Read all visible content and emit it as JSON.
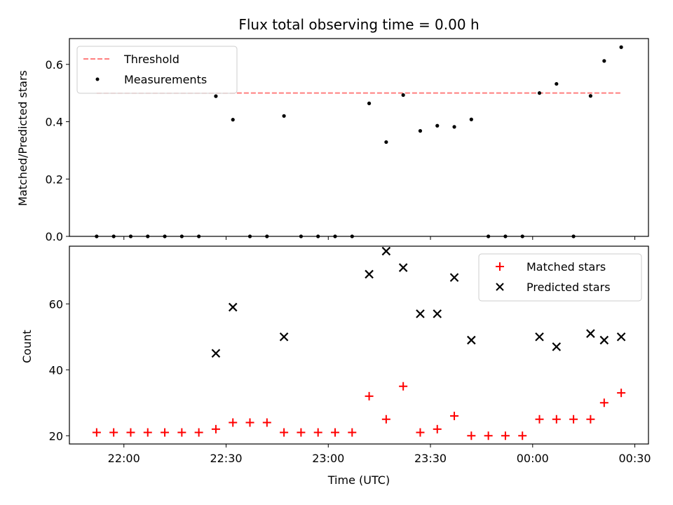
{
  "chart_data": [
    {
      "type": "scatter",
      "title": "Flux total observing time = 0.00 h",
      "ylabel": "Matched/Predicted stars",
      "xlabel": "",
      "xlim": [
        "21:44",
        "00:34"
      ],
      "ylim": [
        0,
        0.69
      ],
      "yticks": [
        0.0,
        0.2,
        0.4,
        0.6
      ],
      "ytick_labels": [
        "0.0",
        "0.2",
        "0.4",
        "0.6"
      ],
      "xticks": [
        "22:00",
        "22:30",
        "23:00",
        "23:30",
        "00:00",
        "00:30"
      ],
      "legend": {
        "position": "top-left",
        "entries": [
          {
            "label": "Threshold",
            "marker": "dashed-line",
            "color": "#ff7f7f"
          },
          {
            "label": "Measurements",
            "marker": "dot",
            "color": "#000000"
          }
        ]
      },
      "threshold": {
        "name": "Threshold",
        "value": 0.5,
        "x_range": [
          "21:52",
          "00:26"
        ],
        "color": "#ff7f7f",
        "style": "dashed"
      },
      "series": [
        {
          "name": "Measurements",
          "color": "#000000",
          "marker": "dot",
          "points": [
            {
              "x": "21:52",
              "y": 0.0
            },
            {
              "x": "21:57",
              "y": 0.0
            },
            {
              "x": "22:02",
              "y": 0.0
            },
            {
              "x": "22:07",
              "y": 0.0
            },
            {
              "x": "22:12",
              "y": 0.0
            },
            {
              "x": "22:17",
              "y": 0.0
            },
            {
              "x": "22:22",
              "y": 0.0
            },
            {
              "x": "22:27",
              "y": 0.489
            },
            {
              "x": "22:32",
              "y": 0.407
            },
            {
              "x": "22:37",
              "y": 0.0
            },
            {
              "x": "22:42",
              "y": 0.0
            },
            {
              "x": "22:47",
              "y": 0.42
            },
            {
              "x": "22:52",
              "y": 0.0
            },
            {
              "x": "22:57",
              "y": 0.0
            },
            {
              "x": "23:02",
              "y": 0.0
            },
            {
              "x": "23:07",
              "y": 0.0
            },
            {
              "x": "23:12",
              "y": 0.464
            },
            {
              "x": "23:17",
              "y": 0.329
            },
            {
              "x": "23:22",
              "y": 0.493
            },
            {
              "x": "23:27",
              "y": 0.368
            },
            {
              "x": "23:32",
              "y": 0.386
            },
            {
              "x": "23:37",
              "y": 0.382
            },
            {
              "x": "23:42",
              "y": 0.408
            },
            {
              "x": "23:47",
              "y": 0.0
            },
            {
              "x": "23:52",
              "y": 0.0
            },
            {
              "x": "23:57",
              "y": 0.0
            },
            {
              "x": "00:02",
              "y": 0.5
            },
            {
              "x": "00:07",
              "y": 0.532
            },
            {
              "x": "00:12",
              "y": 0.0
            },
            {
              "x": "00:17",
              "y": 0.49
            },
            {
              "x": "00:21",
              "y": 0.612
            },
            {
              "x": "00:26",
              "y": 0.66
            }
          ]
        }
      ]
    },
    {
      "type": "scatter",
      "title": "",
      "xlabel": "Time (UTC)",
      "ylabel": "Count",
      "xlim": [
        "21:44",
        "00:34"
      ],
      "ylim": [
        17.5,
        77.5
      ],
      "yticks": [
        20,
        40,
        60
      ],
      "ytick_labels": [
        "20",
        "40",
        "60"
      ],
      "xticks": [
        "22:00",
        "22:30",
        "23:00",
        "23:30",
        "00:00",
        "00:30"
      ],
      "xtick_labels": [
        "22:00",
        "22:30",
        "23:00",
        "23:30",
        "00:00",
        "00:30"
      ],
      "legend": {
        "position": "top-right",
        "entries": [
          {
            "label": "Matched stars",
            "marker": "plus",
            "color": "#ff0000"
          },
          {
            "label": "Predicted stars",
            "marker": "x",
            "color": "#000000"
          }
        ]
      },
      "series": [
        {
          "name": "Matched stars",
          "color": "#ff0000",
          "marker": "plus",
          "points": [
            {
              "x": "21:52",
              "y": 21
            },
            {
              "x": "21:57",
              "y": 21
            },
            {
              "x": "22:02",
              "y": 21
            },
            {
              "x": "22:07",
              "y": 21
            },
            {
              "x": "22:12",
              "y": 21
            },
            {
              "x": "22:17",
              "y": 21
            },
            {
              "x": "22:22",
              "y": 21
            },
            {
              "x": "22:27",
              "y": 22
            },
            {
              "x": "22:32",
              "y": 24
            },
            {
              "x": "22:37",
              "y": 24
            },
            {
              "x": "22:42",
              "y": 24
            },
            {
              "x": "22:47",
              "y": 21
            },
            {
              "x": "22:52",
              "y": 21
            },
            {
              "x": "22:57",
              "y": 21
            },
            {
              "x": "23:02",
              "y": 21
            },
            {
              "x": "23:07",
              "y": 21
            },
            {
              "x": "23:12",
              "y": 32
            },
            {
              "x": "23:17",
              "y": 25
            },
            {
              "x": "23:22",
              "y": 35
            },
            {
              "x": "23:27",
              "y": 21
            },
            {
              "x": "23:32",
              "y": 22
            },
            {
              "x": "23:37",
              "y": 26
            },
            {
              "x": "23:42",
              "y": 20
            },
            {
              "x": "23:47",
              "y": 20
            },
            {
              "x": "23:52",
              "y": 20
            },
            {
              "x": "23:57",
              "y": 20
            },
            {
              "x": "00:02",
              "y": 25
            },
            {
              "x": "00:07",
              "y": 25
            },
            {
              "x": "00:12",
              "y": 25
            },
            {
              "x": "00:17",
              "y": 25
            },
            {
              "x": "00:21",
              "y": 30
            },
            {
              "x": "00:26",
              "y": 33
            }
          ]
        },
        {
          "name": "Predicted stars",
          "color": "#000000",
          "marker": "x",
          "points": [
            {
              "x": "22:27",
              "y": 45
            },
            {
              "x": "22:32",
              "y": 59
            },
            {
              "x": "22:47",
              "y": 50
            },
            {
              "x": "23:12",
              "y": 69
            },
            {
              "x": "23:17",
              "y": 76
            },
            {
              "x": "23:22",
              "y": 71
            },
            {
              "x": "23:27",
              "y": 57
            },
            {
              "x": "23:32",
              "y": 57
            },
            {
              "x": "23:37",
              "y": 68
            },
            {
              "x": "23:42",
              "y": 49
            },
            {
              "x": "00:02",
              "y": 50
            },
            {
              "x": "00:07",
              "y": 47
            },
            {
              "x": "00:17",
              "y": 51
            },
            {
              "x": "00:21",
              "y": 49
            },
            {
              "x": "00:26",
              "y": 50
            }
          ]
        }
      ]
    }
  ]
}
